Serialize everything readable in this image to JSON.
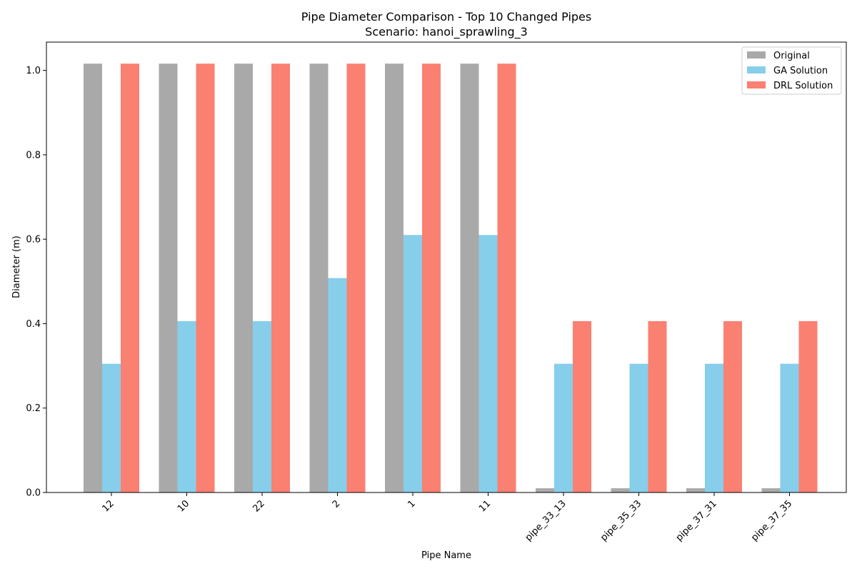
{
  "chart_data": {
    "type": "bar",
    "title": "Pipe Diameter Comparison - Top 10 Changed Pipes",
    "subtitle": "Scenario: hanoi_sprawling_3",
    "xlabel": "Pipe Name",
    "ylabel": "Diameter (m)",
    "ylim": [
      0,
      1.067
    ],
    "yticks": [
      "0.0",
      "0.2",
      "0.4",
      "0.6",
      "0.8",
      "1.0"
    ],
    "categories": [
      "12",
      "10",
      "22",
      "2",
      "1",
      "11",
      "pipe_33_13",
      "pipe_35_33",
      "pipe_37_31",
      "pipe_37_35"
    ],
    "series": [
      {
        "name": "Original",
        "color": "#a9a9a9",
        "values": [
          1.016,
          1.016,
          1.016,
          1.016,
          1.016,
          1.016,
          0.01,
          0.01,
          0.01,
          0.01
        ]
      },
      {
        "name": "GA Solution",
        "color": "#87ceeb",
        "values": [
          0.305,
          0.406,
          0.406,
          0.508,
          0.61,
          0.61,
          0.305,
          0.305,
          0.305,
          0.305
        ]
      },
      {
        "name": "DRL Solution",
        "color": "#fa8072",
        "values": [
          1.016,
          1.016,
          1.016,
          1.016,
          1.016,
          1.016,
          0.406,
          0.406,
          0.406,
          0.406
        ]
      }
    ],
    "grid": false,
    "legend_position": "top-right"
  }
}
